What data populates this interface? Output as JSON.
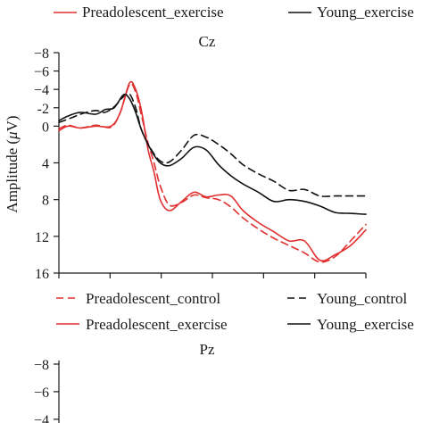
{
  "top_legend": {
    "entries": [
      {
        "label": "Preadolescent_exercise",
        "color": "#e03030",
        "dash": "solid"
      },
      {
        "label": "Young_exercise",
        "color": "#111111",
        "dash": "solid"
      }
    ]
  },
  "chart_data": [
    {
      "type": "line",
      "title": "Cz",
      "ylabel": "Amplitude (μV)",
      "y_inverted": true,
      "ylim": [
        -8,
        16
      ],
      "yticks": [
        "−8",
        "−6",
        "−4",
        "-2",
        "0",
        "4",
        "8",
        "12",
        "16"
      ],
      "ytick_values": [
        -8,
        -6,
        -4,
        -2,
        0,
        4,
        8,
        12,
        16
      ],
      "xlim": [
        0,
        100
      ],
      "grid": false,
      "legend_position": "bottom",
      "legend": [
        {
          "label": "Preadolescent_control",
          "color": "#e03030",
          "dash": "dashed"
        },
        {
          "label": "Young_control",
          "color": "#111111",
          "dash": "dashed"
        },
        {
          "label": "Preadolescent_exercise",
          "color": "#e03030",
          "dash": "solid"
        },
        {
          "label": "Young_exercise",
          "color": "#111111",
          "dash": "solid"
        }
      ],
      "series": [
        {
          "name": "Preadolescent_control",
          "color": "#e03030",
          "dash": "dashed",
          "x": [
            0,
            3,
            7,
            12,
            17,
            20,
            23,
            25,
            27,
            29,
            31,
            33,
            36,
            40,
            44,
            48,
            52,
            56,
            60,
            65,
            70,
            75,
            80,
            85,
            90,
            95,
            100
          ],
          "y": [
            0.3,
            -0.1,
            0.2,
            -0.1,
            0.1,
            -1.5,
            -4.5,
            -3.7,
            -1.0,
            1.8,
            4.0,
            6.5,
            8.6,
            8.3,
            7.5,
            7.8,
            8.0,
            8.8,
            10.0,
            11.2,
            12.2,
            13.0,
            13.8,
            14.8,
            14.2,
            12.5,
            10.7
          ]
        },
        {
          "name": "Young_control",
          "color": "#111111",
          "dash": "dashed",
          "x": [
            0,
            4,
            8,
            12,
            15,
            18,
            21,
            23,
            25,
            27,
            30,
            33,
            36,
            40,
            44,
            48,
            52,
            56,
            60,
            65,
            70,
            75,
            80,
            85,
            90,
            95,
            100
          ],
          "y": [
            -0.4,
            -0.9,
            -1.4,
            -1.7,
            -1.5,
            -2.1,
            -3.2,
            -3.5,
            -2.0,
            0.5,
            2.5,
            3.8,
            3.9,
            2.6,
            1.0,
            1.2,
            2.0,
            3.0,
            4.2,
            5.2,
            6.0,
            7.0,
            6.9,
            7.6,
            7.6,
            7.6,
            7.6
          ]
        },
        {
          "name": "Preadolescent_exercise",
          "color": "#e03030",
          "dash": "solid",
          "x": [
            0,
            3,
            7,
            12,
            17,
            20,
            23,
            25,
            27,
            29,
            31,
            33,
            36,
            40,
            44,
            48,
            52,
            56,
            60,
            65,
            70,
            75,
            80,
            85,
            90,
            95,
            100
          ],
          "y": [
            0.5,
            0.0,
            0.2,
            0.0,
            0.0,
            -1.5,
            -4.7,
            -4.0,
            -1.5,
            2.5,
            5.0,
            8.0,
            9.2,
            8.2,
            7.2,
            7.7,
            7.5,
            7.6,
            9.2,
            10.5,
            11.5,
            12.5,
            12.5,
            14.6,
            14.0,
            13.0,
            11.3
          ]
        },
        {
          "name": "Young_exercise",
          "color": "#111111",
          "dash": "solid",
          "x": [
            0,
            3,
            7,
            12,
            15,
            18,
            21,
            23,
            25,
            27,
            30,
            33,
            36,
            40,
            44,
            48,
            52,
            56,
            60,
            65,
            70,
            75,
            80,
            85,
            90,
            95,
            100
          ],
          "y": [
            -0.6,
            -1.1,
            -1.5,
            -1.3,
            -1.8,
            -2.0,
            -3.4,
            -3.0,
            -1.5,
            0.5,
            2.6,
            4.0,
            4.3,
            3.5,
            2.3,
            2.6,
            4.2,
            5.4,
            6.3,
            7.2,
            8.2,
            8.0,
            8.2,
            8.7,
            9.4,
            9.5,
            9.6
          ]
        }
      ]
    },
    {
      "type": "line",
      "title": "Pz",
      "y_inverted": true,
      "ylim": [
        -8,
        16
      ],
      "yticks": [
        "−8",
        "−6",
        "−4"
      ],
      "ytick_values": [
        -8,
        -6,
        -4
      ],
      "series": []
    }
  ]
}
